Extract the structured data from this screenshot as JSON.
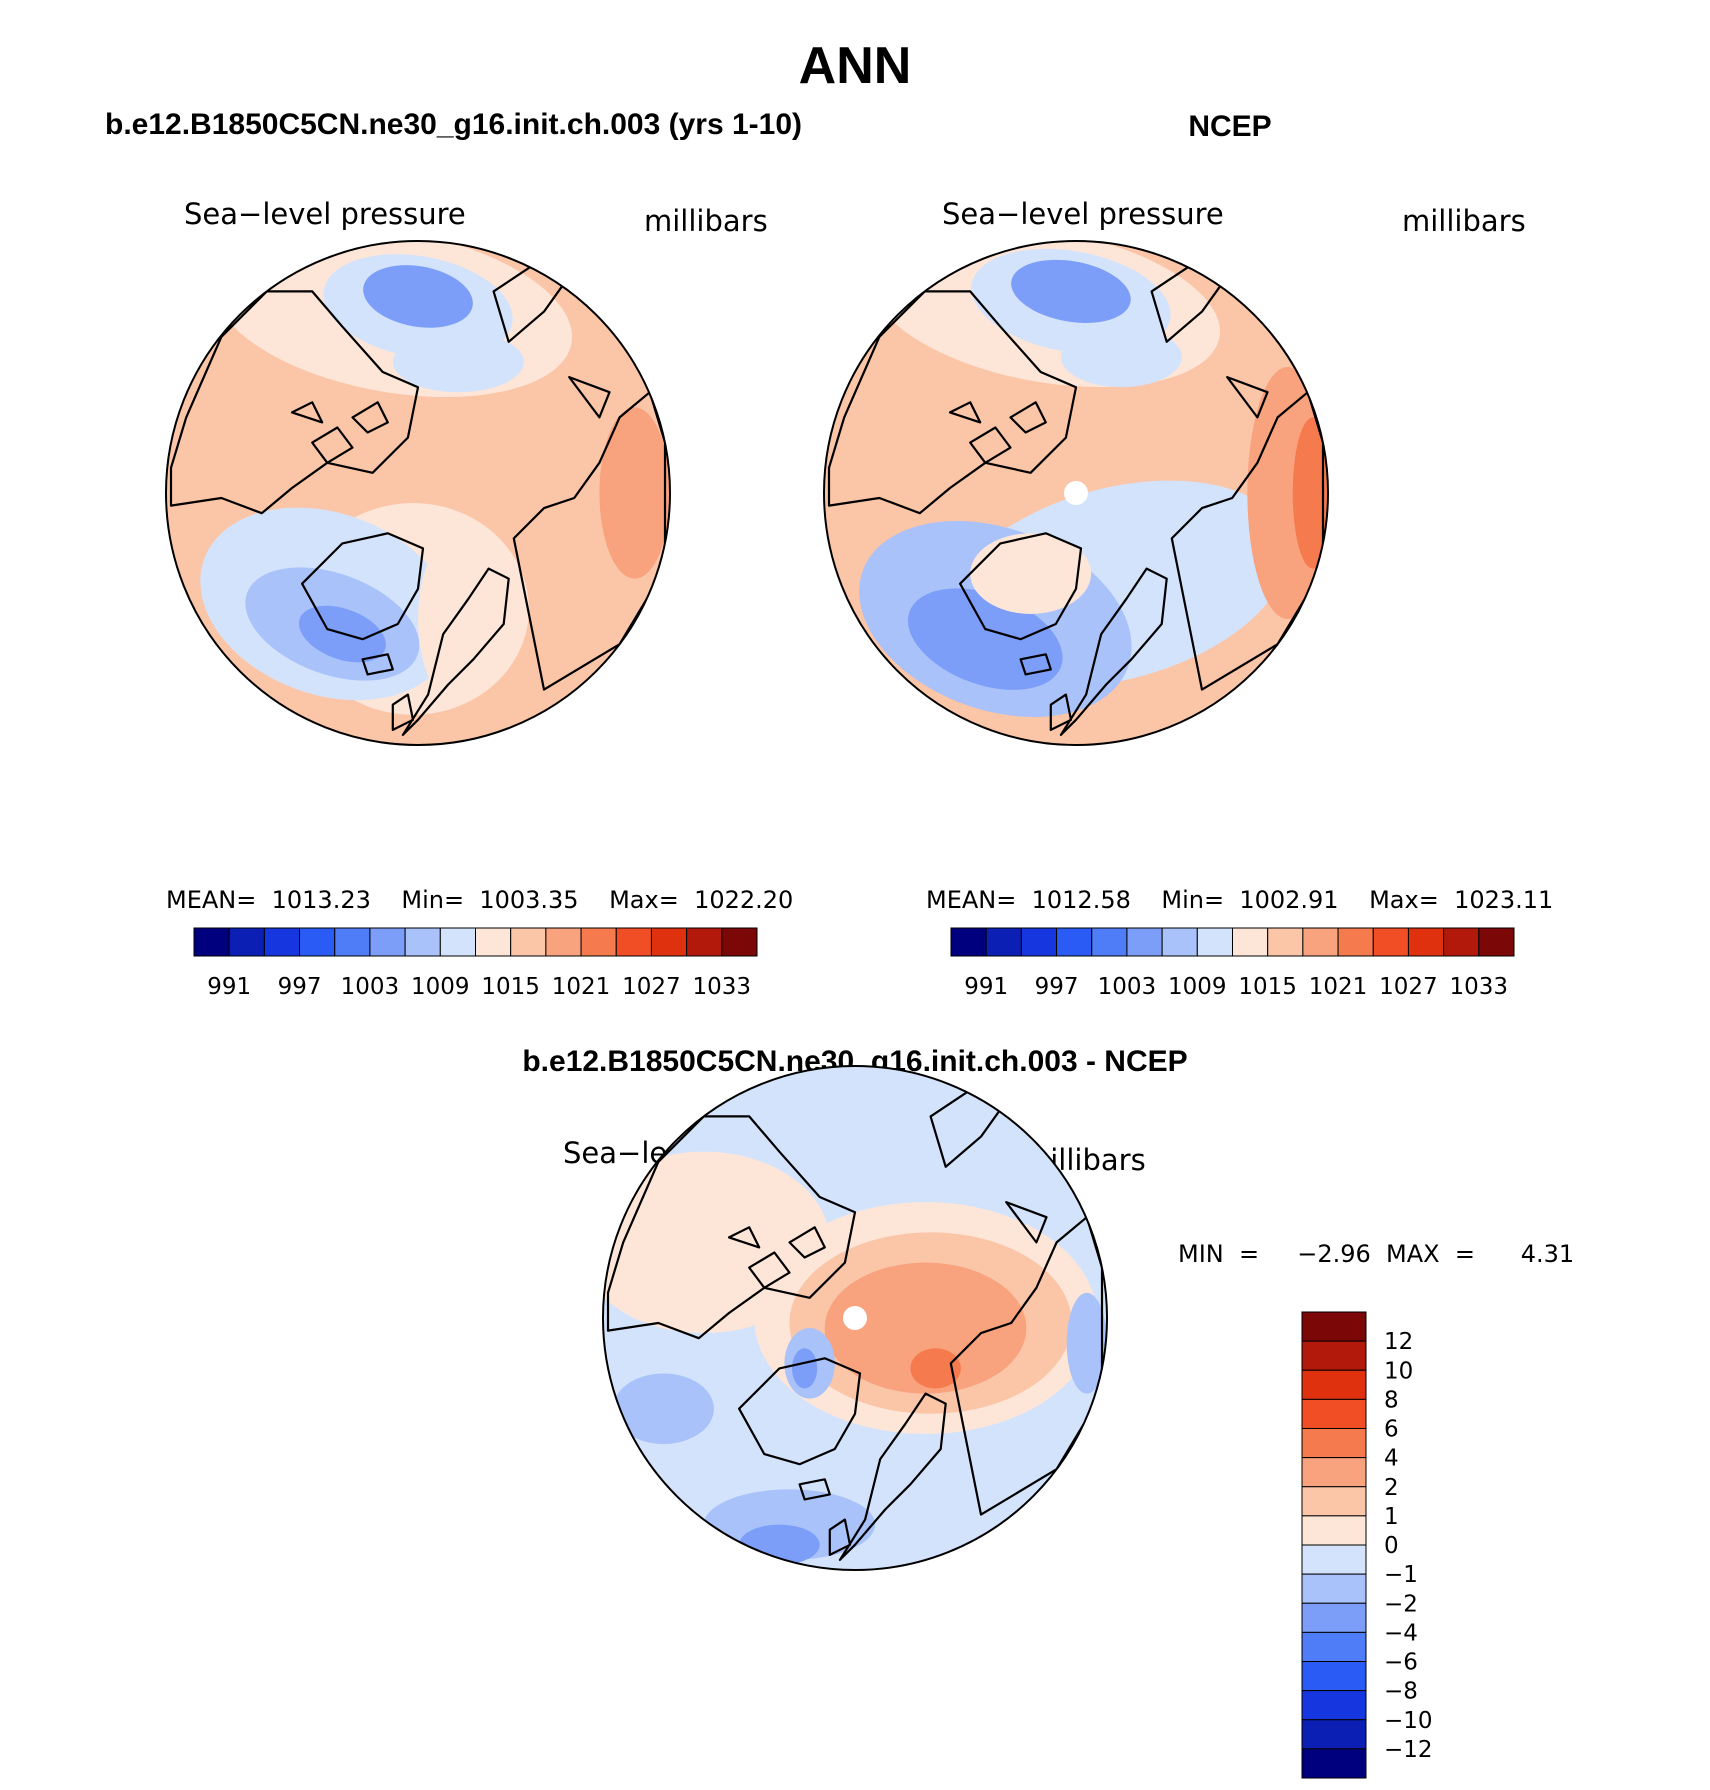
{
  "page_title": "ANN",
  "colors": {
    "seq": [
      "#00007f",
      "#0c1fb4",
      "#1637e0",
      "#2a5bf5",
      "#4f7cf7",
      "#7c9ef8",
      "#a9c2fa",
      "#d4e3fc",
      "#fde6d8",
      "#fbc5a8",
      "#f8a27e",
      "#f57b4e",
      "#f24e26",
      "#e0310f",
      "#b2190b",
      "#7c0707"
    ],
    "diff": [
      "#00007f",
      "#0c1fb4",
      "#1637e0",
      "#2a5bf5",
      "#4f7cf7",
      "#7c9ef8",
      "#a9c2fa",
      "#d4e3fc",
      "#fde6d8",
      "#fbc5a8",
      "#f8a27e",
      "#f57b4e",
      "#f24e26",
      "#e0310f",
      "#b2190b",
      "#7c0707"
    ]
  },
  "panels": {
    "model": {
      "heading": "b.e12.B1850C5CN.ne30_g16.init.ch.003 (yrs 1-10)",
      "var_label": "Sea−level pressure",
      "units": "millibars",
      "stats": "MEAN=  1013.23    Min=  1003.35    Max=  1022.20"
    },
    "obs": {
      "heading": "NCEP",
      "var_label": "Sea−level pressure",
      "units": "millibars",
      "stats": "MEAN=  1012.58    Min=  1002.91    Max=  1023.11"
    },
    "diff": {
      "heading": "b.e12.B1850C5CN.ne30_g16.init.ch.003 - NCEP",
      "var_label": "Sea−level pressure",
      "units": "millibars",
      "stats": "MIN  =     −2.96  MAX  =      4.31"
    }
  },
  "chart_data": [
    {
      "type": "heatmap",
      "name": "model",
      "title": "b.e12.B1850C5CN.ne30_g16.init.ch.003 (yrs 1-10)",
      "variable": "Sea-level pressure",
      "units": "millibars",
      "projection": "north polar stereographic",
      "mean": 1013.23,
      "min": 1003.35,
      "max": 1022.2,
      "colorbar_levels": [
        991,
        997,
        1003,
        1009,
        1015,
        1021,
        1027,
        1033
      ],
      "colorbar_labels": [
        "991",
        "997",
        "1003",
        "1009",
        "1015",
        "1021",
        "1027",
        "1033"
      ]
    },
    {
      "type": "heatmap",
      "name": "obs",
      "title": "NCEP",
      "variable": "Sea-level pressure",
      "units": "millibars",
      "projection": "north polar stereographic",
      "mean": 1012.58,
      "min": 1002.91,
      "max": 1023.11,
      "colorbar_levels": [
        991,
        997,
        1003,
        1009,
        1015,
        1021,
        1027,
        1033
      ],
      "colorbar_labels": [
        "991",
        "997",
        "1003",
        "1009",
        "1015",
        "1021",
        "1027",
        "1033"
      ]
    },
    {
      "type": "heatmap",
      "name": "difference",
      "title": "b.e12.B1850C5CN.ne30_g16.init.ch.003 - NCEP",
      "variable": "Sea-level pressure",
      "units": "millibars",
      "projection": "north polar stereographic",
      "min": -2.96,
      "max": 4.31,
      "colorbar_levels": [
        12,
        10,
        8,
        6,
        4,
        2,
        1,
        0,
        -1,
        -2,
        -4,
        -6,
        -8,
        -10,
        -12
      ],
      "colorbar_labels": [
        "12",
        "10",
        "8",
        "6",
        "4",
        "2",
        "1",
        "0",
        "−1",
        "−2",
        "−4",
        "−6",
        "−8",
        "−10",
        "−12"
      ]
    }
  ]
}
